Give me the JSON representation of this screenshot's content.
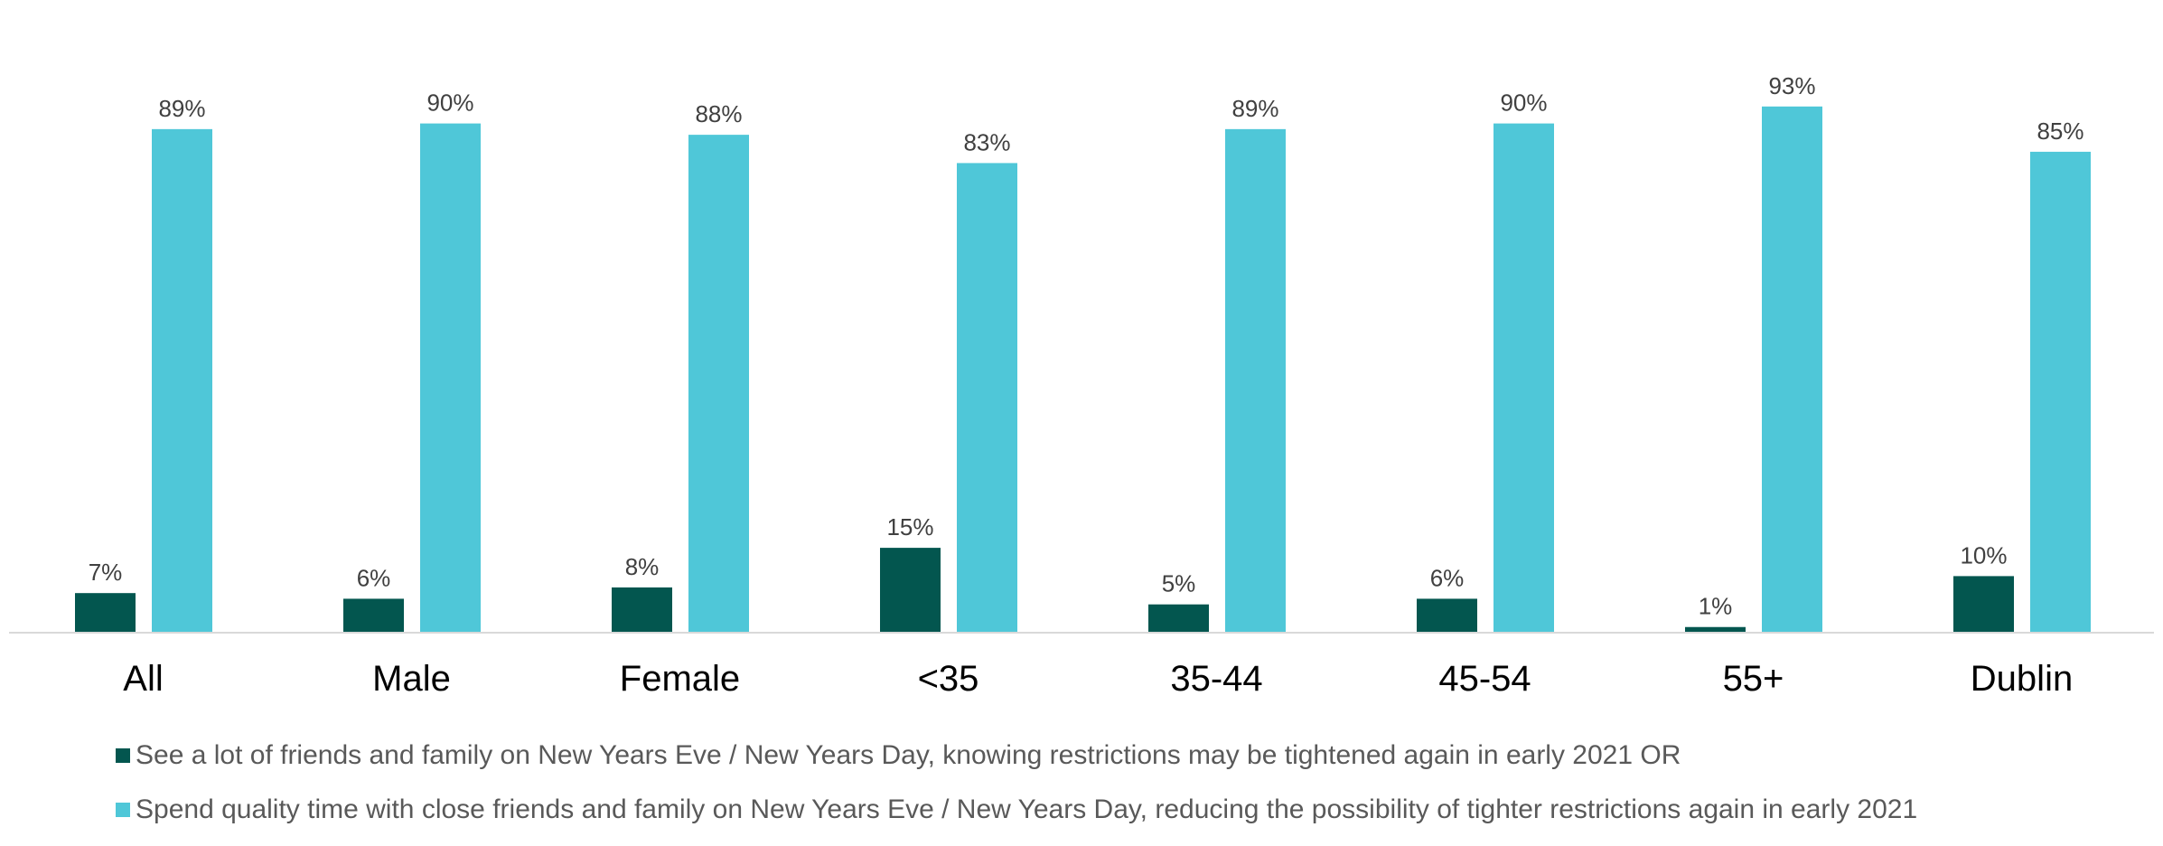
{
  "chart_data": {
    "type": "bar",
    "categories": [
      "All",
      "Male",
      "Female",
      "<35",
      "35-44",
      "45-54",
      "55+",
      "Dublin"
    ],
    "series": [
      {
        "name": "See a lot of friends and family on New Years Eve / New Years Day, knowing restrictions may be tightened again in early 2021  OR",
        "values": [
          7,
          6,
          8,
          15,
          5,
          6,
          1,
          10
        ],
        "labels": [
          "7%",
          "6%",
          "8%",
          "15%",
          "5%",
          "6%",
          "1%",
          "10%"
        ],
        "color": "#03564F"
      },
      {
        "name": "Spend quality time with close friends and family on New Years Eve / New Years Day, reducing the possibility of tighter restrictions again in early 2021",
        "values": [
          89,
          90,
          88,
          83,
          89,
          90,
          93,
          85
        ],
        "labels": [
          "89%",
          "90%",
          "88%",
          "83%",
          "89%",
          "90%",
          "93%",
          "85%"
        ],
        "color": "#4FC7D8"
      }
    ],
    "ylim": [
      0,
      100
    ],
    "grid": false,
    "legend_position": "bottom"
  }
}
